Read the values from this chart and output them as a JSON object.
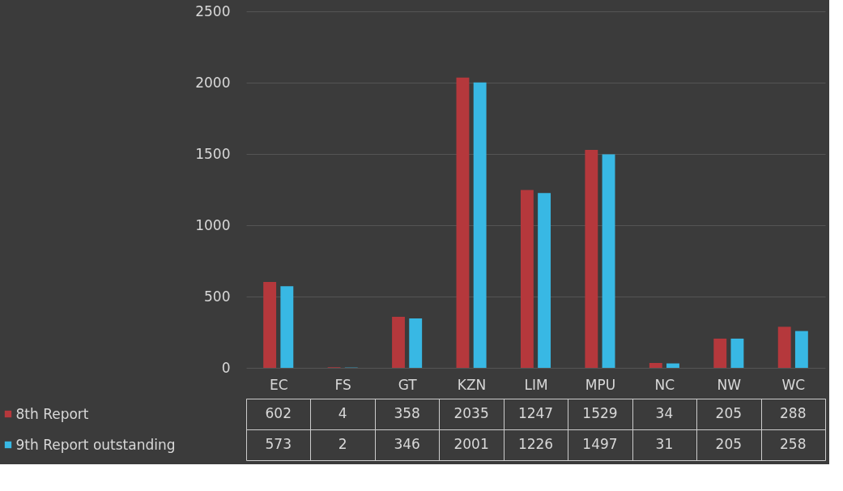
{
  "chart_data": {
    "type": "bar",
    "categories": [
      "EC",
      "FS",
      "GT",
      "KZN",
      "LIM",
      "MPU",
      "NC",
      "NW",
      "WC"
    ],
    "series": [
      {
        "name": "8th Report",
        "color": "#b5383c",
        "values": [
          602,
          4,
          358,
          2035,
          1247,
          1529,
          34,
          205,
          288
        ]
      },
      {
        "name": "9th Report outstanding",
        "color": "#38b8e4",
        "values": [
          573,
          2,
          346,
          2001,
          1226,
          1497,
          31,
          205,
          258
        ]
      }
    ],
    "ylim": [
      0,
      2500
    ],
    "yticks": [
      0,
      500,
      1000,
      1500,
      2000,
      2500
    ],
    "grid": "y",
    "legend": "bottom",
    "data_labels": true
  }
}
